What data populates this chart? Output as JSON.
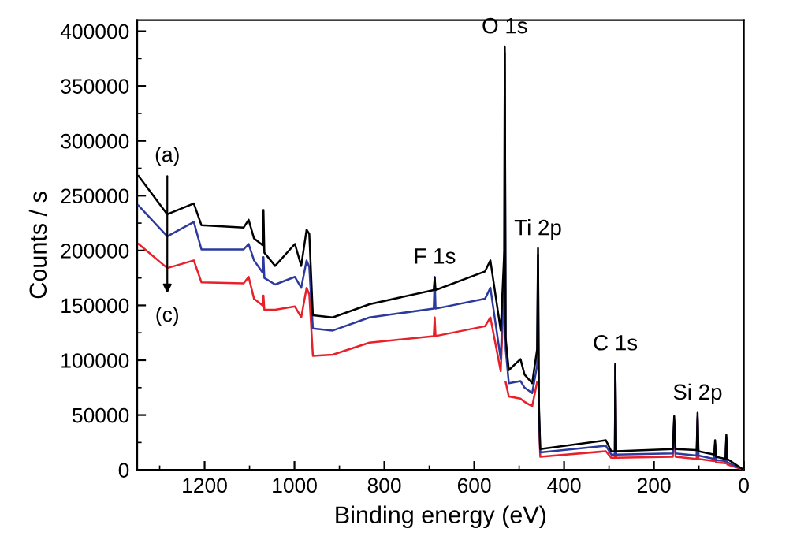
{
  "chart_data": {
    "type": "line",
    "xlabel": "Binding energy (eV)",
    "ylabel": "Counts / s",
    "x": [
      1347,
      1283,
      1224,
      1207,
      1113,
      1102,
      1090,
      1071,
      1069,
      1067,
      1043,
      999,
      985,
      973,
      967,
      959,
      915,
      833,
      690,
      688,
      686,
      576,
      564,
      541,
      533,
      532,
      530,
      523,
      497,
      488,
      471,
      460,
      458,
      456,
      453,
      307,
      295,
      287,
      286,
      284,
      158,
      155,
      152,
      105,
      103,
      101,
      66,
      64,
      62,
      41,
      39,
      37,
      0
    ],
    "series": [
      {
        "color": "#000000",
        "values": [
          268000,
          233000,
          243000,
          223000,
          221000,
          228000,
          211000,
          205000,
          237000,
          198000,
          186000,
          206000,
          186000,
          219000,
          215000,
          141000,
          139000,
          151000,
          164000,
          175000,
          164000,
          181000,
          191000,
          127000,
          200000,
          386000,
          120000,
          91000,
          101000,
          87000,
          79000,
          110000,
          202000,
          60000,
          19000,
          27000,
          17000,
          17000,
          97000,
          17000,
          19000,
          49000,
          19000,
          18000,
          52000,
          17000,
          14000,
          27000,
          12000,
          10000,
          32000,
          10000,
          0
        ]
      },
      {
        "color": "#2b3a9c",
        "values": [
          241000,
          213000,
          226000,
          201000,
          201000,
          206000,
          191000,
          180000,
          194000,
          175000,
          169000,
          176000,
          166000,
          191000,
          185000,
          129000,
          127000,
          139000,
          147000,
          176000,
          147000,
          156000,
          166000,
          101000,
          190000,
          380000,
          110000,
          79000,
          81000,
          75000,
          70000,
          95000,
          196000,
          55000,
          16000,
          22000,
          14000,
          14000,
          96000,
          14000,
          15000,
          46000,
          15000,
          13000,
          48000,
          13000,
          10000,
          24000,
          9000,
          8000,
          30000,
          7000,
          0
        ]
      },
      {
        "color": "#e8202a",
        "values": [
          206000,
          184000,
          191000,
          171000,
          170000,
          176000,
          156000,
          150000,
          159000,
          146000,
          146000,
          149000,
          139000,
          166000,
          160000,
          104000,
          105000,
          116000,
          122000,
          139000,
          122000,
          131000,
          139000,
          90000,
          170000,
          null,
          80000,
          67000,
          65000,
          62000,
          58000,
          80000,
          null,
          45000,
          12000,
          17000,
          11000,
          11000,
          94000,
          11000,
          12000,
          44000,
          12000,
          10000,
          46000,
          10000,
          8000,
          22000,
          7000,
          6000,
          28000,
          5000,
          0
        ]
      }
    ],
    "annotations": [
      "(a)",
      "(c)",
      {
        "text": "F 1s",
        "x": 688,
        "y": 176000
      },
      {
        "text": "O 1s",
        "x": 532,
        "y": 386000
      },
      {
        "text": "Ti 2p",
        "x": 458,
        "y": 202000
      },
      {
        "text": "C 1s",
        "x": 286,
        "y": 97000
      },
      {
        "text": "Si 2p",
        "x": 103,
        "y": 52000
      }
    ],
    "xlim": [
      1350,
      0
    ],
    "xticks": [
      1200,
      1000,
      800,
      600,
      400,
      200,
      0
    ],
    "ylim": [
      0,
      410000
    ],
    "yticks": [
      0,
      50000,
      100000,
      150000,
      200000,
      250000,
      300000,
      350000,
      400000
    ],
    "grid": false,
    "legend": false,
    "marker": "none",
    "line_style": "solid"
  }
}
